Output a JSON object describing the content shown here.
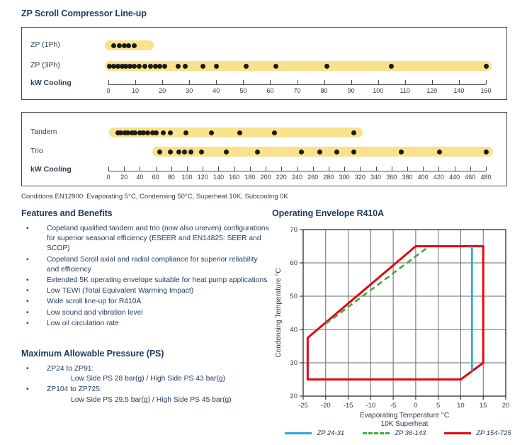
{
  "page": {
    "title": "ZP Scroll Compressor Line-up",
    "conditions": "Conditions EN12900: Evaporating 5°C, Condensing 50°C, Superheat 10K, Subcooling 0K"
  },
  "colors": {
    "heading_text": "#1e3a5c",
    "body_text": "#243d5a",
    "band_yellow": "#fae18c",
    "dot_black": "#1a1a1a",
    "axis_gray": "#4a4a4a",
    "grid_gray": "#6a6a6a",
    "envelope_blue": "#2ba6df",
    "envelope_green": "#3fa93c",
    "envelope_red": "#e30613"
  },
  "chart_data": [
    {
      "type": "scatter",
      "name": "zp-lineup",
      "axis_label": "kW Cooling",
      "ticks": [
        0,
        10,
        20,
        30,
        40,
        50,
        60,
        70,
        80,
        90,
        100,
        110,
        120,
        140,
        160
      ],
      "rows": [
        {
          "label": "ZP (1Ph)",
          "band": [
            0.5,
            15
          ],
          "dots": [
            2,
            4,
            5.8,
            7.6,
            9.5
          ]
        },
        {
          "label": "ZP (3Ph)",
          "band": [
            0.5,
            160.5
          ],
          "dots": [
            0.5,
            2,
            3.5,
            5,
            6.5,
            8,
            9.5,
            11.5,
            13.5,
            15.5,
            17.5,
            19,
            21,
            26,
            28.5,
            35,
            40,
            51,
            62,
            81,
            105,
            160
          ]
        }
      ]
    },
    {
      "type": "scatter",
      "name": "tandem-trio-lineup",
      "axis_label": "kW Cooling",
      "ticks": [
        0,
        20,
        40,
        60,
        80,
        100,
        120,
        140,
        160,
        180,
        200,
        220,
        240,
        260,
        280,
        300,
        320,
        340,
        360,
        380,
        400,
        420,
        440,
        460,
        480
      ],
      "rows": [
        {
          "label": "Tandem",
          "band": [
            7,
            317
          ],
          "dots": [
            12,
            16,
            21,
            25,
            30,
            34,
            40,
            45,
            50,
            56,
            61,
            70,
            79,
            99,
            131,
            167,
            211,
            312
          ]
        },
        {
          "label": "Trio",
          "band": [
            62,
            483
          ],
          "dots": [
            65,
            79,
            90,
            97,
            105,
            118,
            150,
            190,
            245,
            269,
            290,
            312,
            372,
            421,
            480
          ]
        }
      ]
    },
    {
      "type": "line",
      "name": "operating-envelope",
      "title": "Operating Envelope R410A",
      "xlabel": "Evaporating Temperature °C",
      "xlabel2": "10K Superheat",
      "ylabel": "Condensing Temperature °C",
      "xlim": [
        -25,
        20
      ],
      "ylim": [
        20,
        70
      ],
      "xticks": [
        -25,
        -20,
        -15,
        -10,
        -5,
        0,
        5,
        10,
        15,
        20
      ],
      "yticks": [
        20,
        30,
        40,
        50,
        60,
        70
      ],
      "grid": true,
      "legend_position": "bottom",
      "series": [
        {
          "name": "ZP 24-31",
          "color": "#2ba6df",
          "style": "solid",
          "closed": false,
          "points": [
            [
              12.5,
              65
            ],
            [
              12.5,
              27.5
            ]
          ]
        },
        {
          "name": "ZP 36-143",
          "color": "#3fa93c",
          "style": "dashed",
          "closed": false,
          "points": [
            [
              -20,
              41.7
            ],
            [
              2.8,
              64.8
            ]
          ]
        },
        {
          "name": "ZP 154-725",
          "color": "#e30613",
          "style": "solid",
          "closed": true,
          "points": [
            [
              -24,
              37.5
            ],
            [
              0,
              65
            ],
            [
              15,
              65
            ],
            [
              15,
              30
            ],
            [
              10,
              25
            ],
            [
              -24,
              25
            ]
          ]
        }
      ]
    }
  ],
  "features": {
    "heading": "Features and Benefits",
    "items": [
      "Copeland qualified tandem and trio (now also uneven) configurations for superior seasonal efficiency (ESEER and EN14825: SEER and SCOP)",
      "Copeland Scroll axial and radial compliance for superior reliability and efficiency",
      "Extended 5K operating envelope suitable for heat pump applications",
      "Low TEWI (Total Equivalent Warming Impact)",
      "Wide scroll line-up for R410A",
      "Low sound and vibration level",
      "Low oil circulation rate"
    ]
  },
  "pressure": {
    "heading": "Maximum Allowable Pressure (PS)",
    "items": [
      {
        "range": "ZP24 to ZP91:",
        "detail": "Low Side PS 28 bar(g) / High Side PS 43 bar(g)"
      },
      {
        "range": "ZP104 to ZP725:",
        "detail": "Low Side PS 29.5 bar(g) / High Side PS 45 bar(g)"
      }
    ]
  }
}
